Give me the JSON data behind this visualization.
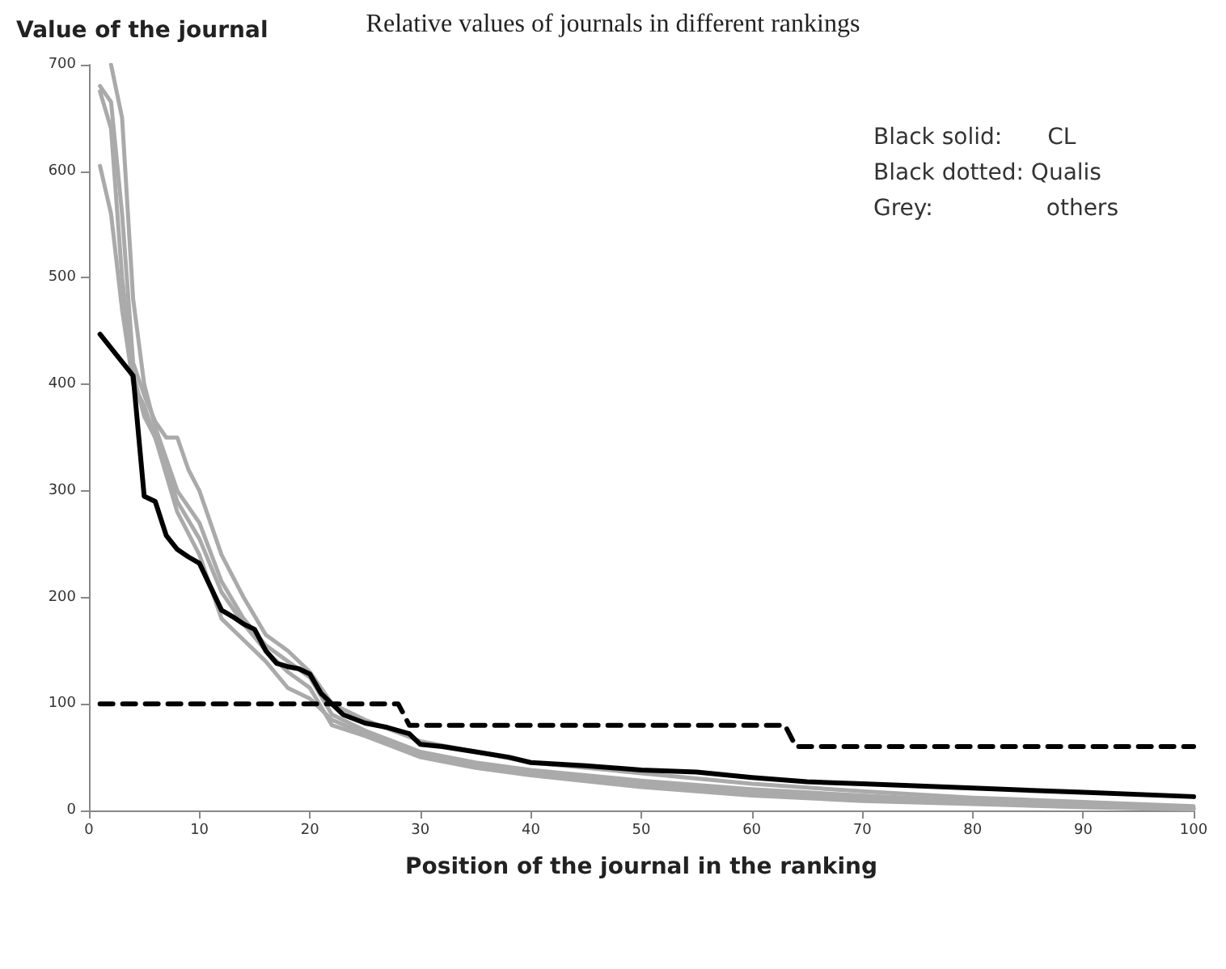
{
  "chart_data": {
    "type": "line",
    "title": "Relative values of journals in different rankings",
    "xlabel": "Position of the journal in the ranking",
    "ylabel": "Value of the journal",
    "xlim": [
      0,
      100
    ],
    "xticks": [
      0,
      10,
      20,
      30,
      40,
      50,
      60,
      70,
      80,
      90,
      100
    ],
    "ylim": [
      0,
      700
    ],
    "yticks": [
      0,
      100,
      200,
      300,
      400,
      500,
      600,
      700
    ],
    "marker": "none",
    "annotations": [
      "Black solid:  CL",
      "Black dotted: Qualis",
      "Grey:     others"
    ],
    "series": [
      {
        "color": "#aaaaaa",
        "line_style": "solid",
        "x": [
          1,
          2,
          3,
          4,
          5,
          6,
          7,
          8,
          9,
          10,
          11,
          12,
          14,
          16,
          18,
          20,
          22,
          25,
          30,
          35,
          40,
          50,
          60,
          70,
          80,
          90,
          100
        ],
        "values": [
          680,
          665,
          560,
          420,
          390,
          365,
          350,
          350,
          320,
          300,
          270,
          240,
          200,
          165,
          150,
          130,
          100,
          85,
          65,
          55,
          45,
          35,
          25,
          18,
          12,
          8,
          4
        ]
      },
      {
        "color": "#aaaaaa",
        "line_style": "solid",
        "x": [
          2,
          3,
          4,
          5,
          6,
          8,
          10,
          12,
          14,
          16,
          18,
          20,
          22,
          25,
          30,
          35,
          40,
          50,
          60,
          70,
          80,
          90,
          100
        ],
        "values": [
          700,
          650,
          480,
          400,
          360,
          300,
          270,
          215,
          180,
          155,
          140,
          125,
          90,
          75,
          55,
          45,
          38,
          28,
          20,
          14,
          9,
          5,
          2
        ]
      },
      {
        "color": "#aaaaaa",
        "line_style": "solid",
        "x": [
          1,
          2,
          3,
          4,
          5,
          6,
          8,
          10,
          12,
          14,
          16,
          18,
          20,
          22,
          25,
          30,
          35,
          40,
          50,
          60,
          70,
          80,
          90,
          100
        ],
        "values": [
          605,
          560,
          470,
          400,
          380,
          350,
          290,
          255,
          205,
          175,
          150,
          130,
          115,
          80,
          70,
          50,
          40,
          33,
          22,
          14,
          9,
          6,
          3,
          1
        ]
      },
      {
        "color": "#aaaaaa",
        "line_style": "solid",
        "x": [
          1,
          2,
          3,
          4,
          5,
          6,
          8,
          10,
          12,
          14,
          16,
          18,
          20,
          22,
          25,
          30,
          35,
          40,
          50,
          60,
          70,
          80,
          90,
          100
        ],
        "values": [
          675,
          640,
          500,
          410,
          370,
          350,
          280,
          240,
          180,
          160,
          140,
          115,
          105,
          85,
          72,
          52,
          42,
          36,
          25,
          17,
          11,
          7,
          4,
          2
        ]
      },
      {
        "color": "#000000",
        "line_style": "solid",
        "x": [
          1,
          4,
          5,
          6,
          7,
          8,
          9,
          10,
          11,
          12,
          13,
          14,
          15,
          16,
          17,
          18,
          19,
          20,
          21,
          22,
          23,
          25,
          27,
          29,
          30,
          32,
          35,
          38,
          40,
          45,
          50,
          55,
          60,
          65,
          70,
          80,
          90,
          100
        ],
        "values": [
          447,
          408,
          295,
          290,
          258,
          245,
          238,
          232,
          210,
          188,
          182,
          175,
          170,
          150,
          138,
          135,
          133,
          128,
          110,
          100,
          90,
          82,
          78,
          72,
          62,
          60,
          55,
          50,
          45,
          42,
          38,
          36,
          31,
          27,
          25,
          21,
          17,
          13
        ]
      },
      {
        "color": "#000000",
        "line_style": "dashed",
        "x": [
          1,
          28,
          29,
          63,
          64,
          100
        ],
        "values": [
          100,
          100,
          80,
          80,
          60,
          60
        ]
      }
    ]
  }
}
